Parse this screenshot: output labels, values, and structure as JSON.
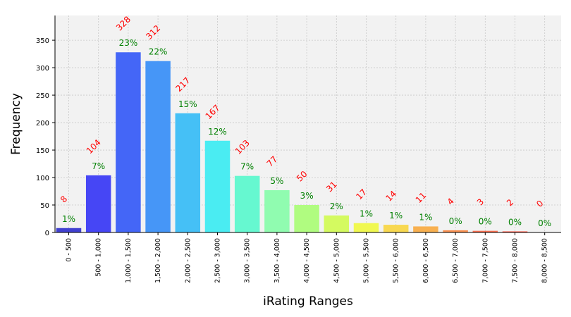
{
  "chart_data": {
    "type": "bar",
    "xlabel": "iRating Ranges",
    "ylabel": "Frequency",
    "ylim": [
      0,
      395
    ],
    "yticks": [
      0,
      50,
      100,
      150,
      200,
      250,
      300,
      350
    ],
    "grid": true,
    "categories": [
      "0 - 500",
      "500 - 1,000",
      "1,000 - 1,500",
      "1,500 - 2,000",
      "2,000 - 2,500",
      "2,500 - 3,000",
      "3,000 - 3,500",
      "3,500 - 4,000",
      "4,000 - 4,500",
      "4,500 - 5,000",
      "5,000 - 5,500",
      "5,500 - 6,000",
      "6,000 - 6,500",
      "6,500 - 7,000",
      "7,000 - 7,500",
      "7,500 - 8,000",
      "8,000 - 8,500"
    ],
    "values": [
      8,
      104,
      328,
      312,
      217,
      167,
      103,
      77,
      50,
      31,
      17,
      14,
      11,
      4,
      3,
      2,
      0
    ],
    "percent_labels": [
      "1%",
      "7%",
      "23%",
      "22%",
      "15%",
      "12%",
      "7%",
      "5%",
      "3%",
      "2%",
      "1%",
      "1%",
      "1%",
      "0%",
      "0%",
      "0%",
      "0%"
    ],
    "colors": [
      "#4040d0",
      "#4646f5",
      "#4466f7",
      "#4696f7",
      "#45c0f6",
      "#4aecf2",
      "#66f8d0",
      "#90fcb0",
      "#b0fc80",
      "#d4fa60",
      "#f0f850",
      "#f8d850",
      "#f8b050",
      "#f89050",
      "#f86e50",
      "#f85848",
      "#f84040"
    ],
    "count_label_color": "#ff0000",
    "percent_label_color": "#008000",
    "plot_background": "#f2f2f2"
  }
}
